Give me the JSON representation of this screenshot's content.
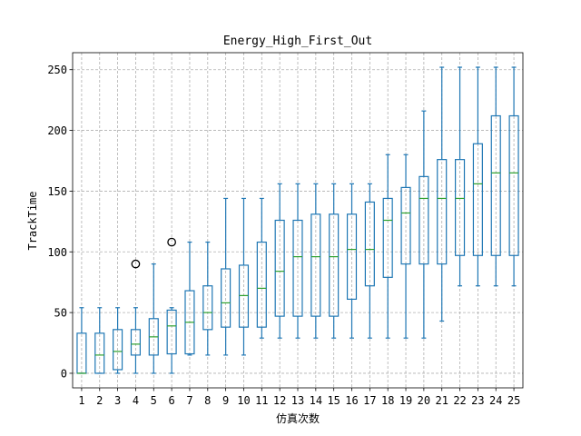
{
  "chart_data": {
    "type": "box",
    "title": "Energy_High_First_Out",
    "xlabel": "仿真次数",
    "ylabel": "TrackTime",
    "categories": [
      "1",
      "2",
      "3",
      "4",
      "5",
      "6",
      "7",
      "8",
      "9",
      "10",
      "11",
      "12",
      "13",
      "14",
      "15",
      "16",
      "17",
      "18",
      "19",
      "20",
      "21",
      "22",
      "23",
      "24",
      "25"
    ],
    "ylim": [
      -12,
      264
    ],
    "yticks": [
      0,
      50,
      100,
      150,
      200,
      250
    ],
    "grid": true,
    "colors": {
      "box": "#1f77b4",
      "median": "#2ca02c",
      "outlier": "#000000",
      "grid": "#b0b0b0"
    },
    "boxes": [
      {
        "whislo": 0,
        "q1": 0,
        "med": 0,
        "q3": 33,
        "whishi": 54,
        "fliers": []
      },
      {
        "whislo": 0,
        "q1": 0,
        "med": 15,
        "q3": 33,
        "whishi": 54,
        "fliers": []
      },
      {
        "whislo": 0,
        "q1": 3,
        "med": 18,
        "q3": 36,
        "whishi": 54,
        "fliers": []
      },
      {
        "whislo": 0,
        "q1": 15,
        "med": 24,
        "q3": 36,
        "whishi": 54,
        "fliers": [
          90
        ]
      },
      {
        "whislo": 0,
        "q1": 15,
        "med": 30,
        "q3": 45,
        "whishi": 90,
        "fliers": []
      },
      {
        "whislo": 0,
        "q1": 16,
        "med": 39,
        "q3": 52,
        "whishi": 54,
        "fliers": [
          108
        ]
      },
      {
        "whislo": 15,
        "q1": 16,
        "med": 42,
        "q3": 68,
        "whishi": 108,
        "fliers": []
      },
      {
        "whislo": 15,
        "q1": 36,
        "med": 50,
        "q3": 72,
        "whishi": 108,
        "fliers": []
      },
      {
        "whislo": 15,
        "q1": 38,
        "med": 58,
        "q3": 86,
        "whishi": 144,
        "fliers": []
      },
      {
        "whislo": 15,
        "q1": 38,
        "med": 64,
        "q3": 89,
        "whishi": 144,
        "fliers": []
      },
      {
        "whislo": 29,
        "q1": 38,
        "med": 70,
        "q3": 108,
        "whishi": 144,
        "fliers": []
      },
      {
        "whislo": 29,
        "q1": 47,
        "med": 84,
        "q3": 126,
        "whishi": 156,
        "fliers": []
      },
      {
        "whislo": 29,
        "q1": 47,
        "med": 96,
        "q3": 126,
        "whishi": 156,
        "fliers": []
      },
      {
        "whislo": 29,
        "q1": 47,
        "med": 96,
        "q3": 131,
        "whishi": 156,
        "fliers": []
      },
      {
        "whislo": 29,
        "q1": 47,
        "med": 96,
        "q3": 131,
        "whishi": 156,
        "fliers": []
      },
      {
        "whislo": 29,
        "q1": 61,
        "med": 102,
        "q3": 131,
        "whishi": 156,
        "fliers": []
      },
      {
        "whislo": 29,
        "q1": 72,
        "med": 102,
        "q3": 141,
        "whishi": 156,
        "fliers": []
      },
      {
        "whislo": 29,
        "q1": 79,
        "med": 126,
        "q3": 144,
        "whishi": 180,
        "fliers": []
      },
      {
        "whislo": 29,
        "q1": 90,
        "med": 132,
        "q3": 153,
        "whishi": 180,
        "fliers": []
      },
      {
        "whislo": 29,
        "q1": 90,
        "med": 144,
        "q3": 162,
        "whishi": 216,
        "fliers": []
      },
      {
        "whislo": 43,
        "q1": 90,
        "med": 144,
        "q3": 176,
        "whishi": 252,
        "fliers": []
      },
      {
        "whislo": 72,
        "q1": 97,
        "med": 144,
        "q3": 176,
        "whishi": 252,
        "fliers": []
      },
      {
        "whislo": 72,
        "q1": 97,
        "med": 156,
        "q3": 189,
        "whishi": 252,
        "fliers": []
      },
      {
        "whislo": 72,
        "q1": 97,
        "med": 165,
        "q3": 212,
        "whishi": 252,
        "fliers": []
      },
      {
        "whislo": 72,
        "q1": 97,
        "med": 165,
        "q3": 212,
        "whishi": 252,
        "fliers": []
      }
    ]
  }
}
